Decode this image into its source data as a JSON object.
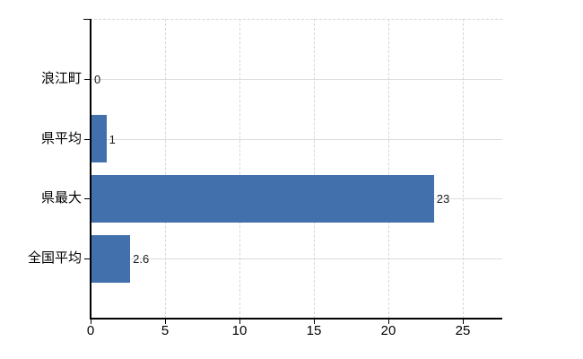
{
  "chart_data": {
    "type": "bar",
    "orientation": "horizontal",
    "title": "",
    "xlabel": "",
    "ylabel": "",
    "categories": [
      "浪江町",
      "県平均",
      "県最大",
      "全国平均"
    ],
    "values": [
      0,
      1,
      23,
      2.6
    ],
    "data_labels": [
      "0",
      "1",
      "23",
      "2.6"
    ],
    "x_ticks": [
      "0",
      "5",
      "10",
      "15",
      "20",
      "25"
    ],
    "x_tick_values": [
      0,
      5,
      10,
      15,
      20,
      25
    ],
    "xlim": [
      0,
      27.65
    ],
    "legend": "none",
    "grid": {
      "vertical": "dashed, every 5 units",
      "horizontal": "solid, at each category center",
      "top_border": "dashed"
    },
    "colors": {
      "bar": "#4170ac",
      "axis": "#000000",
      "gridline_horizontal": "#d9ded9",
      "gridline_vertical": "#d6d6d6",
      "data_label": "#1a1a1a",
      "tick_label": "#000000",
      "background": "#ffffff"
    }
  }
}
